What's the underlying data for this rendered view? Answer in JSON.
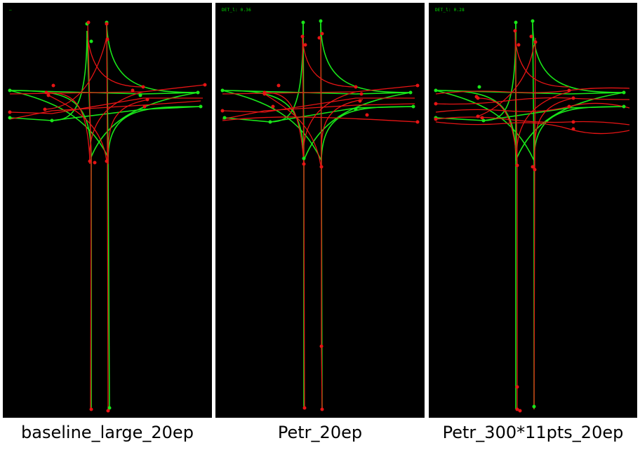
{
  "panels": [
    {
      "metric_label": "—",
      "caption": "baseline_large_20ep"
    },
    {
      "metric_label": "DET_l: 0.36",
      "caption": "Petr_20ep"
    },
    {
      "metric_label": "DET_l: 0.28",
      "caption": "Petr_300*11pts_20ep"
    }
  ],
  "colors": {
    "background": "#000000",
    "ground_truth": "#19e619",
    "prediction": "#e61414",
    "metric_text": "#00e000"
  }
}
